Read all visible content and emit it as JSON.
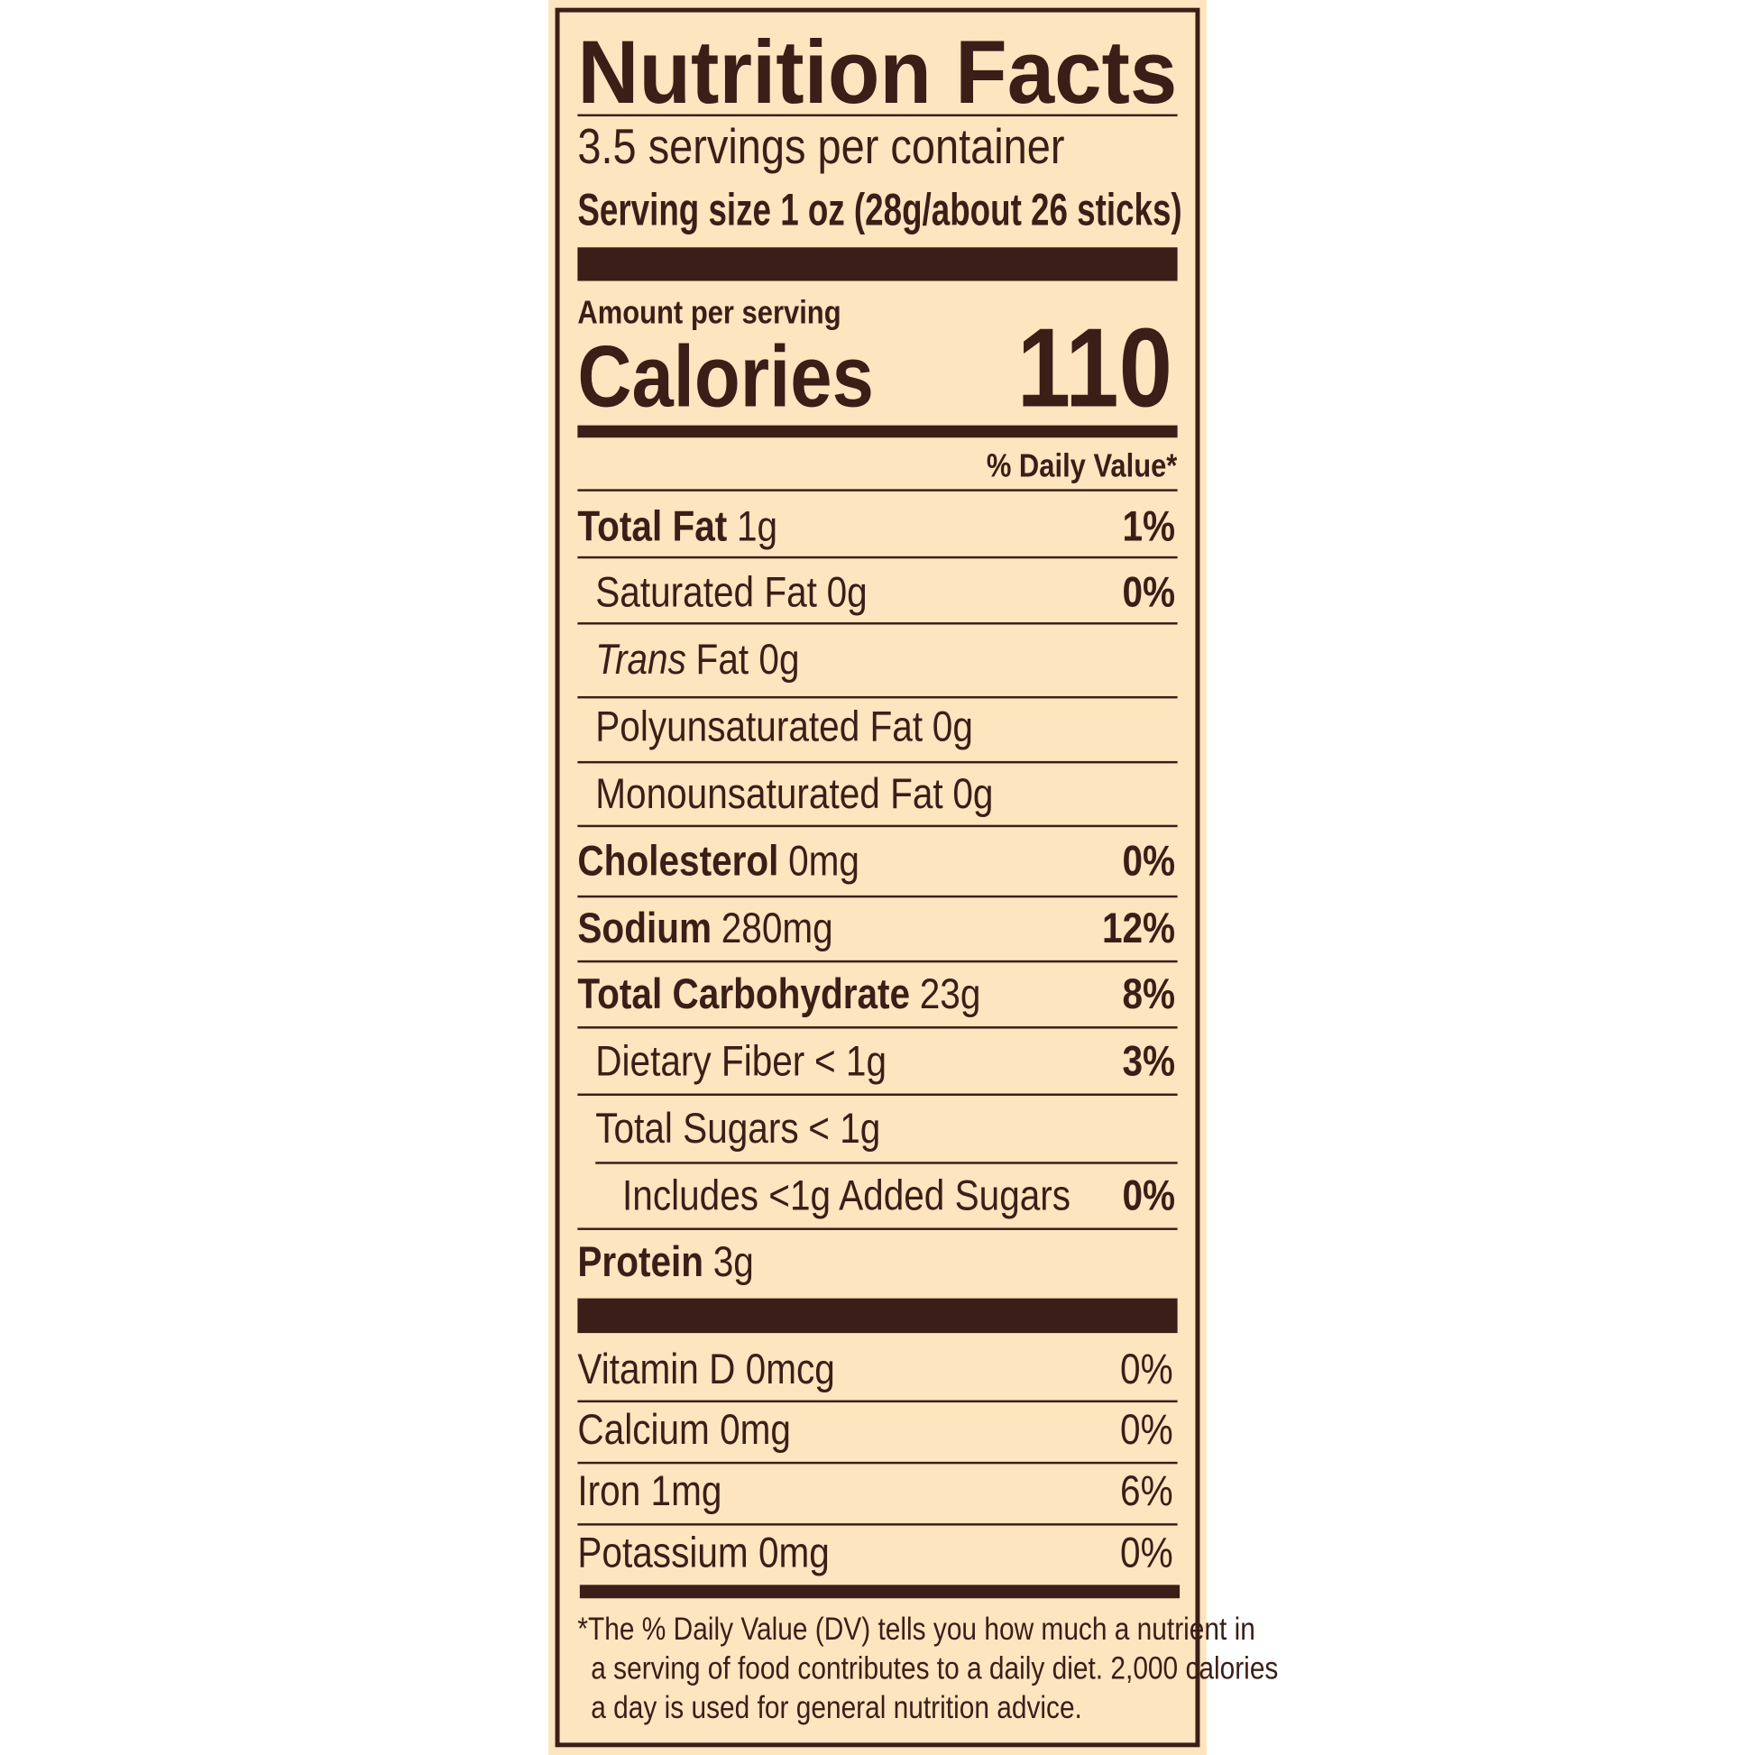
{
  "title": "Nutrition Facts",
  "servings": "3.5 servings per container",
  "serving_size": "Serving size 1 oz (28g/about 26 sticks)",
  "amount_per_serving": "Amount per serving",
  "calories": {
    "label": "Calories",
    "value": "110"
  },
  "daily_value_header": "% Daily Value*",
  "nutrients": [
    {
      "name": "Total Fat",
      "amount": "1g",
      "dv": "1%"
    },
    {
      "name": "Saturated Fat",
      "amount": "0g",
      "dv": "0%"
    },
    {
      "name": "Trans",
      "amount": "Fat 0g"
    },
    {
      "name": "Polyunsaturated Fat",
      "amount": "0g"
    },
    {
      "name": "Monounsaturated Fat",
      "amount": "0g"
    },
    {
      "name": "Cholesterol",
      "amount": "0mg",
      "dv": "0%"
    },
    {
      "name": "Sodium",
      "amount": "280mg",
      "dv": "12%"
    },
    {
      "name": "Total Carbohydrate",
      "amount": "23g",
      "dv": "8%"
    },
    {
      "name": "Dietary Fiber",
      "amount": "< 1g",
      "dv": "3%"
    },
    {
      "name": "Total Sugars",
      "amount": "< 1g"
    },
    {
      "name": "Includes <1g Added Sugars",
      "dv": "0%"
    },
    {
      "name": "Protein",
      "amount": "3g"
    }
  ],
  "vitamins": [
    {
      "name": "Vitamin D 0mcg",
      "dv": "0%"
    },
    {
      "name": "Calcium 0mg",
      "dv": "0%"
    },
    {
      "name": "Iron 1mg",
      "dv": "6%"
    },
    {
      "name": "Potassium 0mg",
      "dv": "0%"
    }
  ],
  "footnote": [
    "*The % Daily Value (DV) tells you how much a nutrient in",
    "a serving of food contributes to a daily diet. 2,000 calories",
    "a day is used for general nutrition advice."
  ]
}
